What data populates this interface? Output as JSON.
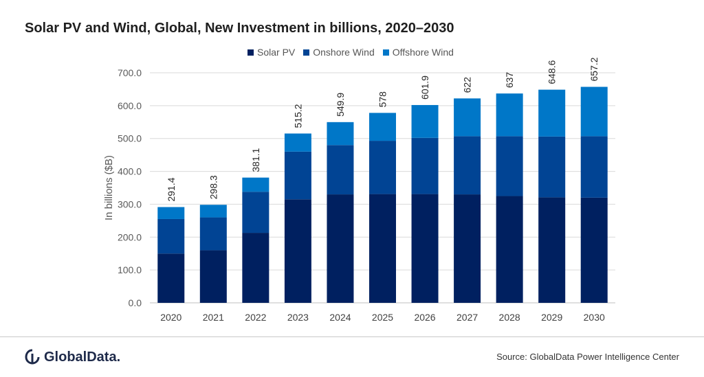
{
  "chart_data": {
    "type": "bar",
    "stacked": true,
    "title": "Solar PV and Wind, Global, New Investment in billions, 2020–2030",
    "xlabel": "",
    "ylabel": "In billions ($B)",
    "ylim": [
      0,
      700
    ],
    "yticks": [
      "0.0",
      "100.0",
      "200.0",
      "300.0",
      "400.0",
      "500.0",
      "600.0",
      "700.0"
    ],
    "grid": true,
    "legend_position": "top",
    "categories": [
      "2020",
      "2021",
      "2022",
      "2023",
      "2024",
      "2025",
      "2026",
      "2027",
      "2028",
      "2029",
      "2030"
    ],
    "series": [
      {
        "name": "Solar PV",
        "color": "#002060",
        "values": [
          150,
          160,
          213,
          315,
          330,
          331,
          331,
          330,
          325,
          321,
          320
        ]
      },
      {
        "name": "Onshore Wind",
        "color": "#014494",
        "values": [
          105,
          100,
          125,
          145,
          150,
          162,
          171,
          177,
          182,
          185,
          187
        ]
      },
      {
        "name": "Offshore Wind",
        "color": "#0077c8",
        "values": [
          36.4,
          38.3,
          43.1,
          55.2,
          69.9,
          85,
          99.9,
          115,
          130,
          142.6,
          150.2
        ]
      }
    ],
    "totals": [
      "291.4",
      "298.3",
      "381.1",
      "515.2",
      "549.9",
      "578",
      "601.9",
      "622",
      "637",
      "648.6",
      "657.2"
    ]
  },
  "footer": {
    "logo_text": "GlobalData.",
    "source": "Source: GlobalData Power Intelligence Center"
  }
}
